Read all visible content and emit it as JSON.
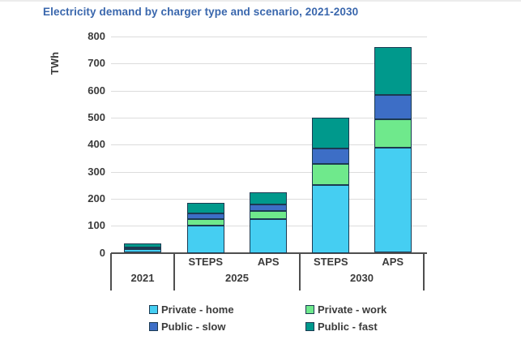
{
  "page": {
    "title": "Electricity demand by charger type and scenario, 2021-2030"
  },
  "colors": {
    "title_text": "#3a67ad",
    "axis_text": "#3b3b3b",
    "gridline": "#dcdcdc",
    "axis_line": "#4f4f4f",
    "segment_border": "#1c3a52"
  },
  "chart_data": {
    "type": "bar",
    "stacked": true,
    "title": "Electricity demand by charger type and scenario, 2021-2030",
    "xlabel": "",
    "ylabel": "TWh",
    "ylim": [
      0,
      800
    ],
    "ytick_step": 100,
    "ytick_labels": [
      "0",
      "100",
      "200",
      "300",
      "400",
      "500",
      "600",
      "700",
      "800"
    ],
    "grid": "horizontal",
    "legend_position": "bottom",
    "groups": [
      {
        "year": "2021",
        "scenarios": [
          ""
        ]
      },
      {
        "year": "2025",
        "scenarios": [
          "STEPS",
          "APS"
        ]
      },
      {
        "year": "2030",
        "scenarios": [
          "STEPS",
          "APS"
        ]
      }
    ],
    "bars": [
      "2021",
      "2025 STEPS",
      "2025 APS",
      "2030 STEPS",
      "2030 APS"
    ],
    "series": [
      {
        "name": "Private - home",
        "color": "#45cef2",
        "values": [
          15,
          100,
          125,
          250,
          390
        ]
      },
      {
        "name": "Private - work",
        "color": "#6fe98c",
        "values": [
          3,
          25,
          30,
          80,
          105
        ]
      },
      {
        "name": "Public - slow",
        "color": "#3d6ec6",
        "values": [
          2,
          20,
          25,
          55,
          90
        ]
      },
      {
        "name": "Public - fast",
        "color": "#00998c",
        "values": [
          15,
          40,
          45,
          115,
          175
        ]
      }
    ],
    "totals": [
      35,
      185,
      225,
      500,
      760
    ]
  }
}
